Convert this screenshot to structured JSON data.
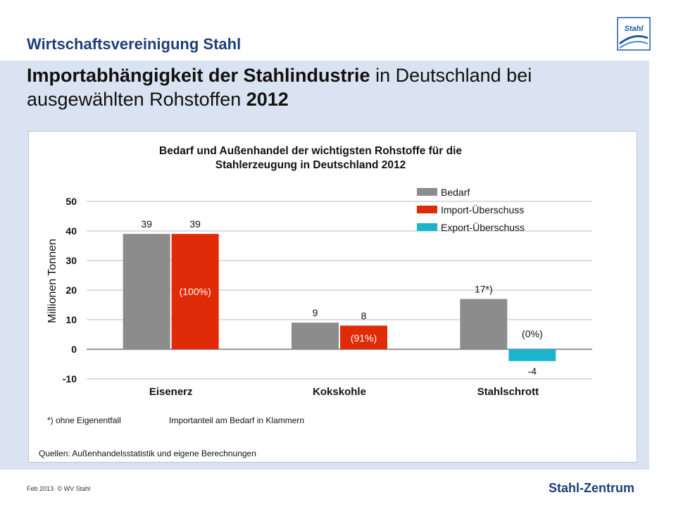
{
  "header": {
    "org_name": "Wirtschaftsvereinigung Stahl",
    "logo_text": "Stahl",
    "title_bold_1": "Importabhängigkeit der Stahlindustrie",
    "title_regular_1": " in Deutschland bei",
    "title_regular_2": "ausgewählten Rohstoffen ",
    "title_bold_2": "2012"
  },
  "chart_data": {
    "type": "bar",
    "title": "Bedarf und Außenhandel der wichtigsten Rohstoffe für die Stahlerzeugung in Deutschland 2012",
    "title_line1": "Bedarf und Außenhandel der wichtigsten Rohstoffe für die",
    "title_line2": "Stahlerzeugung in Deutschland 2012",
    "ylabel": "Millionen  Tonnen",
    "xlabel": "",
    "ylim": [
      -10,
      50
    ],
    "yticks": [
      50,
      40,
      30,
      20,
      10,
      0,
      -10
    ],
    "grid": true,
    "legend_position": "top-right",
    "categories": [
      "Eisenerz",
      "Kokskohle",
      "Stahlschrott"
    ],
    "series": [
      {
        "name": "Bedarf",
        "color": "#8c8c8c",
        "values": [
          39,
          9,
          17
        ],
        "labels": [
          "39",
          "9",
          "17*)"
        ]
      },
      {
        "name": "Import-Überschuss",
        "color": "#df2b08",
        "values": [
          39,
          8,
          null
        ],
        "labels": [
          "39",
          "8",
          ""
        ]
      },
      {
        "name": "Export-Überschuss",
        "color": "#1cb3cd",
        "values": [
          null,
          null,
          -4
        ],
        "labels": [
          "",
          "",
          "-4"
        ]
      }
    ],
    "import_shares": [
      "(100%)",
      "(91%)",
      "(0%)"
    ],
    "footnote_1": "*) ohne Eigenentfall",
    "footnote_2": "Importanteil am Bedarf in Klammern",
    "source": "Quellen: Außenhandelsstatistik und eigene Berechnungen"
  },
  "footer": {
    "left": "Feb 2013· © WV Stahl",
    "right": "Stahl-Zentrum"
  }
}
